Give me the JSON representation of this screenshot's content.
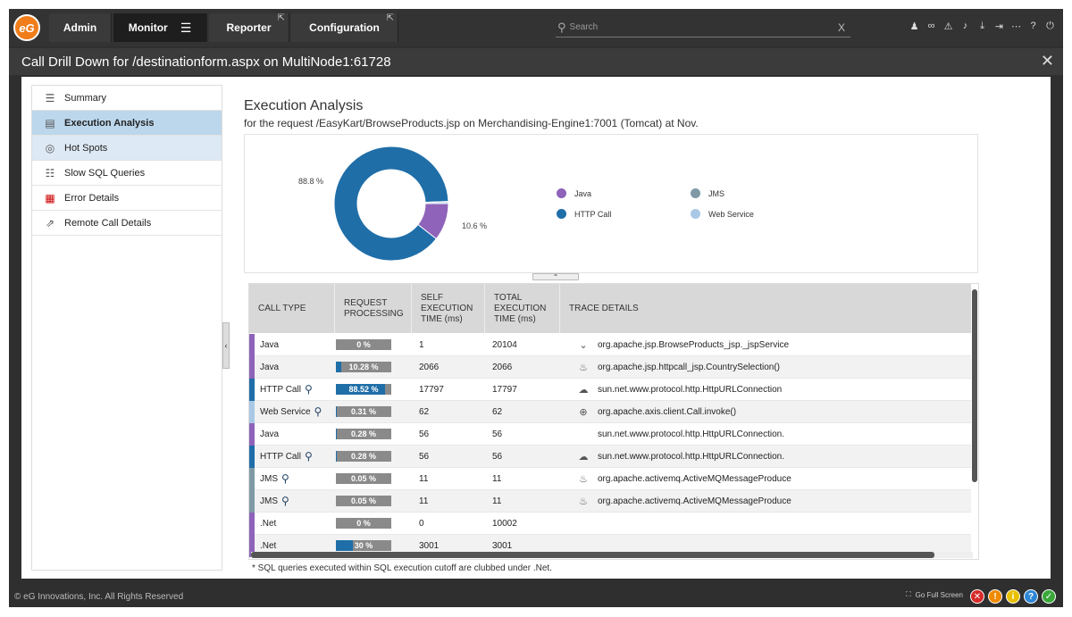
{
  "nav": {
    "logo": "eG",
    "items": [
      {
        "label": "Admin"
      },
      {
        "label": "Monitor"
      },
      {
        "label": "Reporter"
      },
      {
        "label": "Configuration"
      }
    ],
    "search_placeholder": "Search",
    "search_clear": "X"
  },
  "titlebar": {
    "title": "Call Drill Down for /destinationform.aspx on MultiNode1:61728"
  },
  "sidebar": {
    "items": [
      {
        "label": "Summary",
        "icon": "list-icon"
      },
      {
        "label": "Execution Analysis",
        "icon": "analysis-icon"
      },
      {
        "label": "Hot Spots",
        "icon": "target-icon"
      },
      {
        "label": "Slow SQL Queries",
        "icon": "database-icon"
      },
      {
        "label": "Error Details",
        "icon": "error-icon"
      },
      {
        "label": "Remote Call Details",
        "icon": "remote-icon"
      }
    ]
  },
  "content": {
    "title": "Execution Analysis",
    "subtitle": "for the request /EasyKart/BrowseProducts.jsp on Merchandising-Engine1:7001 (Tomcat) at Nov."
  },
  "chart_data": {
    "type": "pie",
    "slices": [
      {
        "name": "HTTP Call",
        "value": 88.8,
        "label": "88.8 %",
        "color": "#1f6ea8"
      },
      {
        "name": "Java",
        "value": 10.6,
        "label": "10.6 %",
        "color": "#8e63b9"
      },
      {
        "name": "JMS",
        "value": 0.1,
        "color": "#7f9aa6"
      },
      {
        "name": "Web Service",
        "value": 0.5,
        "color": "#a9c8e5"
      }
    ],
    "legend": [
      {
        "name": "Java",
        "color": "#8e63b9"
      },
      {
        "name": "JMS",
        "color": "#7f9aa6"
      },
      {
        "name": "HTTP Call",
        "color": "#1f6ea8"
      },
      {
        "name": "Web Service",
        "color": "#a9c8e5"
      }
    ]
  },
  "table": {
    "headers": {
      "call_type": "CALL TYPE",
      "req1": "REQUEST",
      "req2": "PROCESSING",
      "self1": "SELF",
      "self2": "EXECUTION",
      "self3": "TIME (ms)",
      "total1": "TOTAL",
      "total2": "EXECUTION",
      "total3": "TIME (ms)",
      "trace": "TRACE DETAILS"
    },
    "rows": [
      {
        "type": "Java",
        "color": "#8e63b9",
        "pct": 0,
        "pct_label": "0 %",
        "self": "1",
        "total": "20104",
        "trace": "org.apache.jsp.BrowseProducts_jsp._jspService",
        "icon": "jsp-icon",
        "search": false
      },
      {
        "type": "Java",
        "color": "#8e63b9",
        "pct": 10.28,
        "pct_label": "10.28 %",
        "self": "2066",
        "total": "2066",
        "trace": "org.apache.jsp.httpcall_jsp.CountrySelection()",
        "icon": "java-icon",
        "search": false
      },
      {
        "type": "HTTP Call",
        "color": "#1f6ea8",
        "pct": 88.52,
        "pct_label": "88.52 %",
        "self": "17797",
        "total": "17797",
        "trace": "sun.net.www.protocol.http.HttpURLConnection",
        "icon": "cloud-icon",
        "search": true
      },
      {
        "type": "Web Service",
        "color": "#a9c8e5",
        "pct": 0.31,
        "pct_label": "0.31 %",
        "self": "62",
        "total": "62",
        "trace": "org.apache.axis.client.Call.invoke()",
        "icon": "globe-icon",
        "search": true
      },
      {
        "type": "Java",
        "color": "#8e63b9",
        "pct": 0.28,
        "pct_label": "0.28 %",
        "self": "56",
        "total": "56",
        "trace": "sun.net.www.protocol.http.HttpURLConnection.",
        "icon": "",
        "search": false
      },
      {
        "type": "HTTP Call",
        "color": "#1f6ea8",
        "pct": 0.28,
        "pct_label": "0.28 %",
        "self": "56",
        "total": "56",
        "trace": "sun.net.www.protocol.http.HttpURLConnection.",
        "icon": "cloud-icon",
        "search": true
      },
      {
        "type": "JMS",
        "color": "#7f9aa6",
        "pct": 0.05,
        "pct_label": "0.05 %",
        "self": "11",
        "total": "11",
        "trace": "org.apache.activemq.ActiveMQMessageProduce",
        "icon": "java-icon",
        "search": true
      },
      {
        "type": "JMS",
        "color": "#7f9aa6",
        "pct": 0.05,
        "pct_label": "0.05 %",
        "self": "11",
        "total": "11",
        "trace": "org.apache.activemq.ActiveMQMessageProduce",
        "icon": "java-icon",
        "search": true
      },
      {
        "type": ".Net",
        "color": "#8e63b9",
        "pct": 0,
        "pct_label": "0 %",
        "self": "0",
        "total": "10002",
        "trace": "",
        "icon": "",
        "search": false
      },
      {
        "type": ".Net",
        "color": "#8e63b9",
        "pct": 30,
        "pct_label": "30 %",
        "self": "3001",
        "total": "3001",
        "trace": "",
        "icon": "",
        "search": false
      }
    ]
  },
  "footnote": "* SQL queries executed within SQL execution cutoff are clubbed under .Net.",
  "footer": {
    "copyright": "© eG Innovations, Inc. All Rights Reserved",
    "fullscreen": "Go Full Screen"
  }
}
